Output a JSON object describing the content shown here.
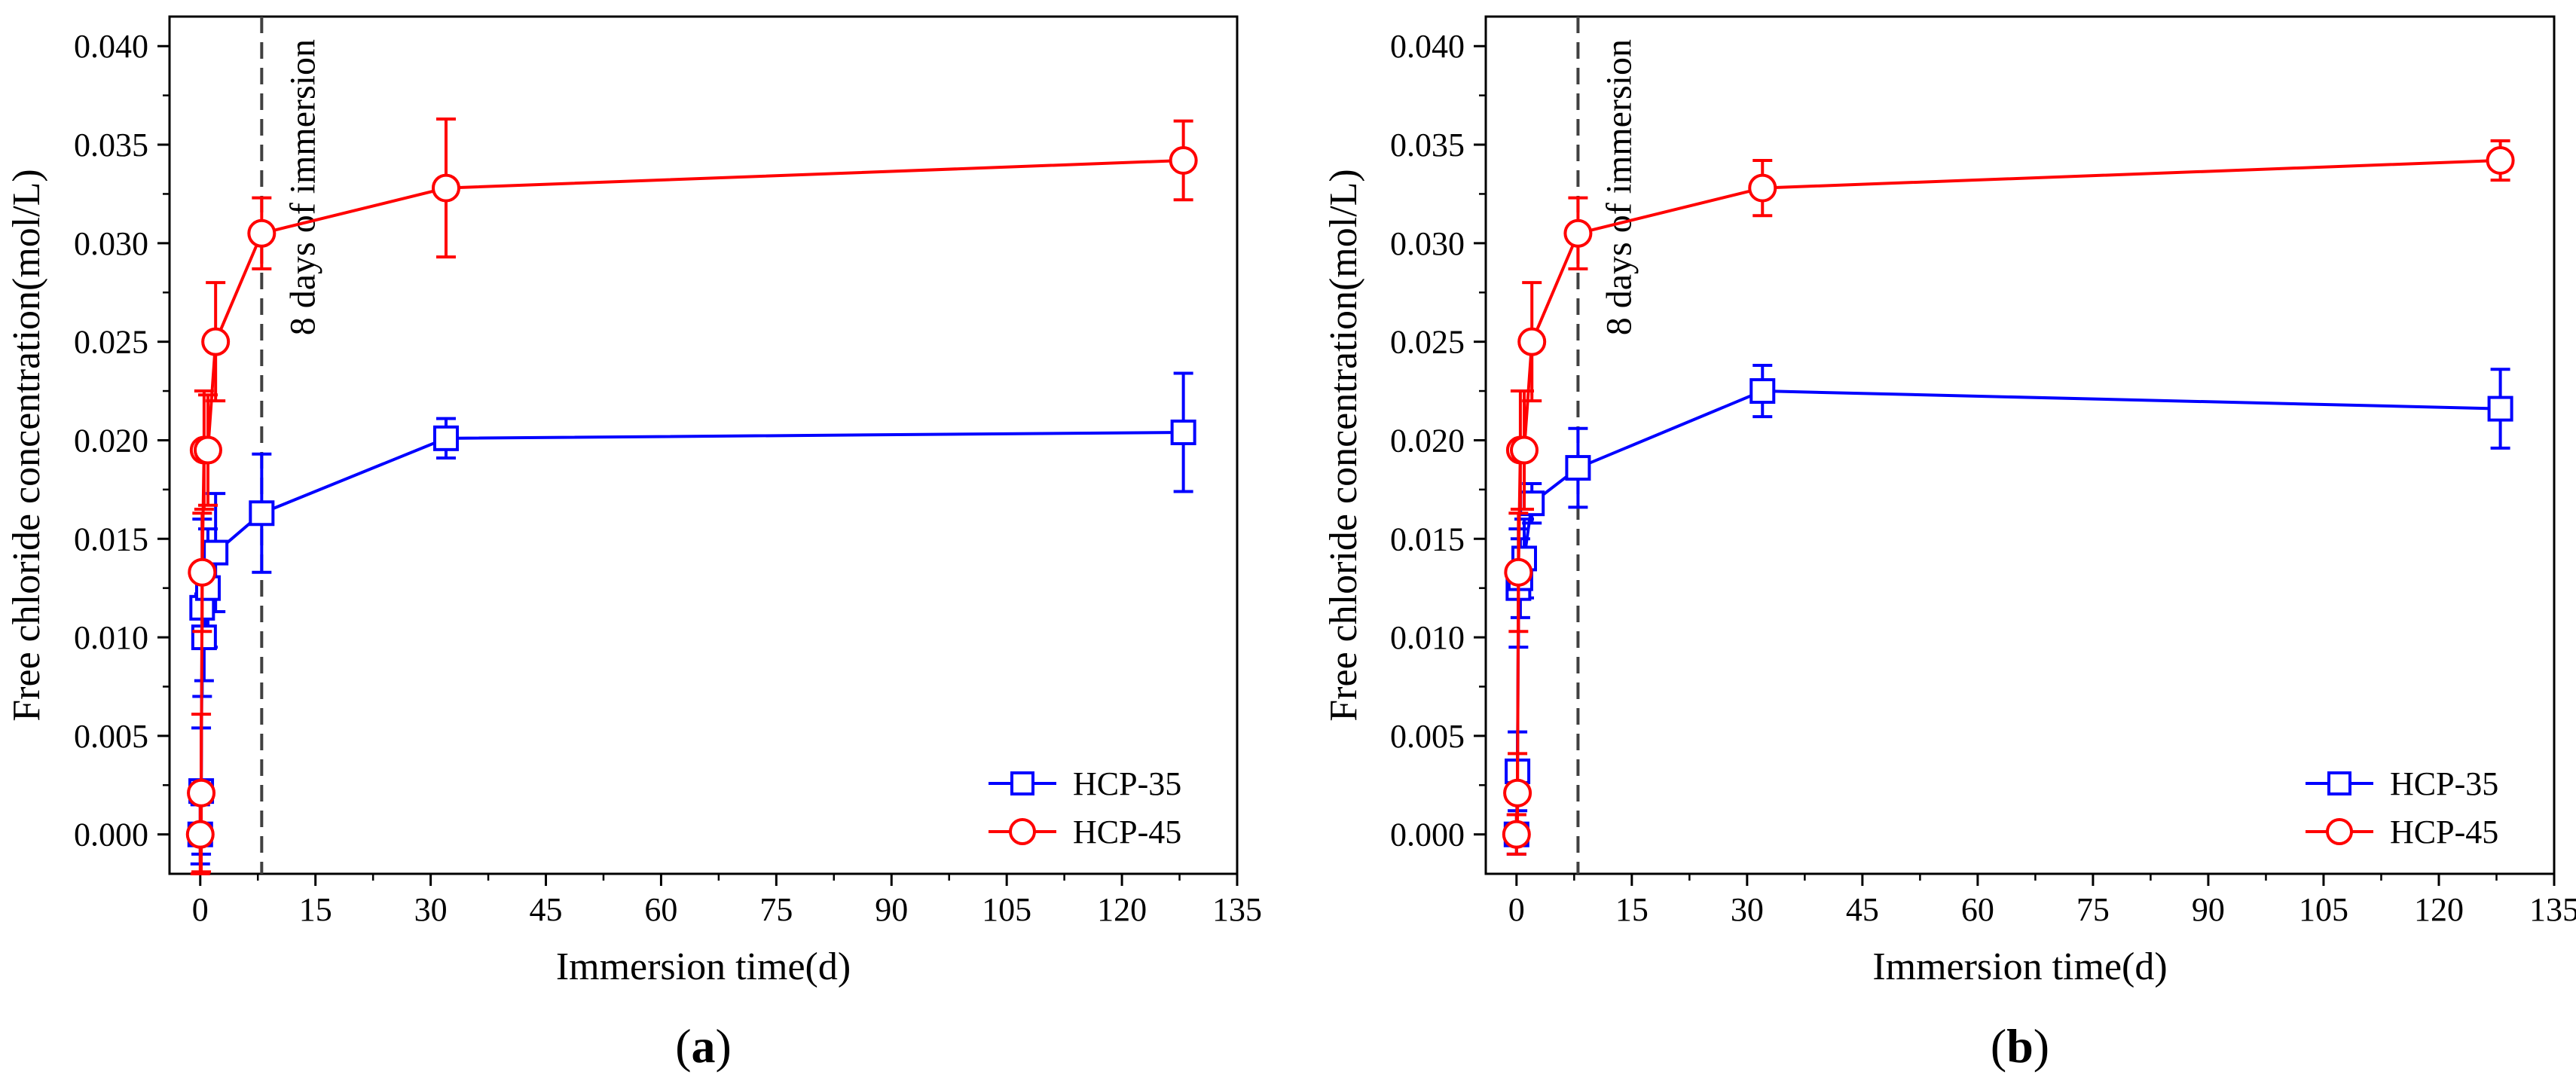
{
  "figure": {
    "background": "#ffffff"
  },
  "chart_data": [
    {
      "type": "line",
      "panel_label": "a",
      "xlabel": "Immersion time(d)",
      "ylabel": "Free chloride concentration(mol/L)",
      "xlim": [
        -4,
        135
      ],
      "ylim": [
        -0.002,
        0.0415
      ],
      "xticks": [
        0,
        15,
        30,
        45,
        60,
        75,
        90,
        105,
        120,
        135
      ],
      "yticks": [
        0.0,
        0.005,
        0.01,
        0.015,
        0.02,
        0.025,
        0.03,
        0.035,
        0.04
      ],
      "xtick_labels": [
        "0",
        "15",
        "30",
        "45",
        "60",
        "75",
        "90",
        "105",
        "120",
        "135"
      ],
      "ytick_labels": [
        "0.000",
        "0.005",
        "0.010",
        "0.015",
        "0.020",
        "0.025",
        "0.030",
        "0.035",
        "0.040"
      ],
      "annotation": {
        "text": "8 days of immersion",
        "x": 8
      },
      "legend_position": "bottom-right",
      "series": [
        {
          "name": "HCP-35",
          "color": "#0000ff",
          "marker": "square",
          "x": [
            0,
            0.125,
            0.25,
            0.5,
            1,
            2,
            8,
            32,
            128
          ],
          "y": [
            0.0,
            0.0022,
            0.0115,
            0.01,
            0.0125,
            0.0143,
            0.0163,
            0.0201,
            0.0204
          ],
          "err": [
            0.0015,
            0.0032,
            0.0045,
            0.0022,
            0.003,
            0.003,
            0.003,
            0.001,
            0.003
          ]
        },
        {
          "name": "HCP-45",
          "color": "#ff0000",
          "marker": "circle",
          "x": [
            0,
            0.125,
            0.25,
            0.5,
            1,
            2,
            8,
            32,
            128
          ],
          "y": [
            0.0,
            0.0021,
            0.0133,
            0.0195,
            0.0195,
            0.025,
            0.0305,
            0.0328,
            0.0342
          ],
          "err": [
            0.002,
            0.004,
            0.003,
            0.003,
            0.0028,
            0.003,
            0.0018,
            0.0035,
            0.002
          ]
        }
      ]
    },
    {
      "type": "line",
      "panel_label": "b",
      "xlabel": "Immersion time(d)",
      "ylabel": "Free chloride concentration(mol/L)",
      "xlim": [
        -4,
        135
      ],
      "ylim": [
        -0.002,
        0.0415
      ],
      "xticks": [
        0,
        15,
        30,
        45,
        60,
        75,
        90,
        105,
        120,
        135
      ],
      "yticks": [
        0.0,
        0.005,
        0.01,
        0.015,
        0.02,
        0.025,
        0.03,
        0.035,
        0.04
      ],
      "xtick_labels": [
        "0",
        "15",
        "30",
        "45",
        "60",
        "75",
        "90",
        "105",
        "120",
        "135"
      ],
      "ytick_labels": [
        "0.000",
        "0.005",
        "0.010",
        "0.015",
        "0.020",
        "0.025",
        "0.030",
        "0.035",
        "0.040"
      ],
      "annotation": {
        "text": "8 days of immersion",
        "x": 8
      },
      "legend_position": "bottom-right",
      "series": [
        {
          "name": "HCP-35",
          "color": "#0000ff",
          "marker": "square",
          "x": [
            0,
            0.125,
            0.25,
            0.5,
            1,
            2,
            8,
            32,
            128
          ],
          "y": [
            0.0,
            0.0032,
            0.0125,
            0.013,
            0.014,
            0.0168,
            0.0186,
            0.0225,
            0.0216
          ],
          "err": [
            0.001,
            0.002,
            0.003,
            0.002,
            0.002,
            0.001,
            0.002,
            0.0013,
            0.002
          ]
        },
        {
          "name": "HCP-45",
          "color": "#ff0000",
          "marker": "circle",
          "x": [
            0,
            0.125,
            0.25,
            0.5,
            1,
            2,
            8,
            32,
            128
          ],
          "y": [
            0.0,
            0.0021,
            0.0133,
            0.0195,
            0.0195,
            0.025,
            0.0305,
            0.0328,
            0.0342
          ],
          "err": [
            0.001,
            0.002,
            0.003,
            0.003,
            0.003,
            0.003,
            0.0018,
            0.0014,
            0.001
          ]
        }
      ]
    }
  ]
}
